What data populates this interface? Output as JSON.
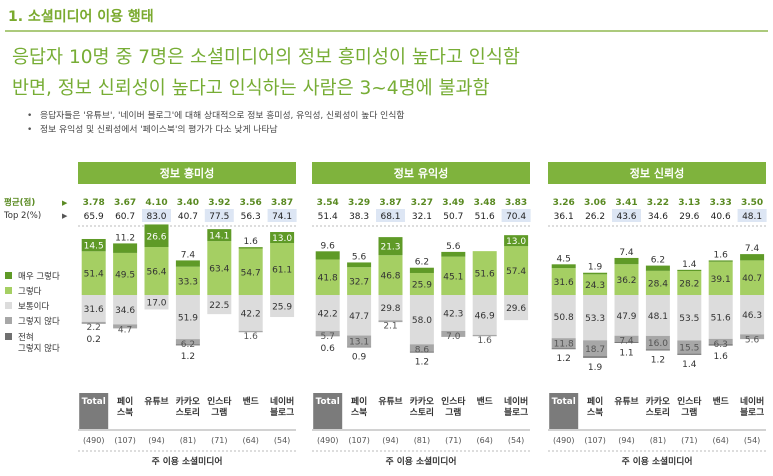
{
  "header": {
    "section_title": "1. 소셜미디어 이용 행태",
    "headline_1": "응답자 10명 중 7명은 소셜미디어의 정보 흥미성이 높다고 인식함",
    "headline_2": "반면, 정보 신뢰성이 높다고 인식하는 사람은 3~4명에 불과함",
    "bullets": [
      "응답자들은 '유튜브', '네이버 블로그'에 대해 상대적으로 정보 흥미성, 유익성, 신뢰성이 높다 인식함",
      "정보 유익성 및 신뢰성에서 '페이스북'의 평가가 다소 낮게 나타남"
    ]
  },
  "row_labels": {
    "mean": "평균(점)",
    "top2": "Top 2(%)"
  },
  "legend": [
    {
      "label": "매우 그렇다",
      "color": "#5f9a27"
    },
    {
      "label": "그렇다",
      "color": "#a5cf63"
    },
    {
      "label": "보통이다",
      "color": "#dcdcdc"
    },
    {
      "label": "그렇지 않다",
      "color": "#a7a7a7"
    },
    {
      "label": "전혀 그렇지 않다",
      "color": "#707070"
    }
  ],
  "colors": {
    "accent": "#7aaa2e",
    "headline": "#77ad35",
    "panel_header": "#7fb33d",
    "top2_highlight": "#dde6f4",
    "total_box": "#7b7b7b"
  },
  "chart_data": {
    "type": "stacked-bar",
    "x_axis_title": "주 이용 소셜미디어",
    "categories": [
      "Total",
      "페이스북",
      "유튜브",
      "카카오스토리",
      "인스타그램",
      "밴드",
      "네이버블로그"
    ],
    "category_labels": [
      "Total",
      "페이\n스북",
      "유튜브",
      "카카오\n스토리",
      "인스타\n그램",
      "밴드",
      "네이버\n블로그"
    ],
    "sample_sizes": [
      "(490)",
      "(107)",
      "(94)",
      "(81)",
      "(71)",
      "(64)",
      "(54)"
    ],
    "series_names": [
      "매우 그렇다",
      "그렇다",
      "보통이다",
      "그렇지 않다",
      "전혀 그렇지 않다"
    ],
    "panels": [
      {
        "title": "정보 흥미성",
        "mean": [
          "3.78",
          "3.67",
          "4.10",
          "3.40",
          "3.92",
          "3.56",
          "3.87"
        ],
        "top2": [
          "65.9",
          "60.7",
          "83.0",
          "40.7",
          "77.5",
          "56.3",
          "74.1"
        ],
        "top2_highlight": [
          false,
          false,
          true,
          false,
          true,
          false,
          true
        ],
        "values": [
          [
            14.5,
            51.4,
            31.6,
            2.2,
            0.2
          ],
          [
            11.2,
            49.5,
            34.6,
            4.7,
            0
          ],
          [
            26.6,
            56.4,
            17.0,
            0,
            0
          ],
          [
            7.4,
            33.3,
            51.9,
            6.2,
            1.2
          ],
          [
            14.1,
            63.4,
            22.5,
            0,
            0
          ],
          [
            1.6,
            54.7,
            42.2,
            1.6,
            0
          ],
          [
            13.0,
            61.1,
            25.9,
            0,
            0
          ]
        ]
      },
      {
        "title": "정보 유익성",
        "mean": [
          "3.54",
          "3.29",
          "3.87",
          "3.27",
          "3.49",
          "3.48",
          "3.83"
        ],
        "top2": [
          "51.4",
          "38.3",
          "68.1",
          "32.1",
          "50.7",
          "51.6",
          "70.4"
        ],
        "top2_highlight": [
          false,
          false,
          true,
          false,
          false,
          false,
          true
        ],
        "values": [
          [
            9.6,
            41.8,
            42.2,
            5.7,
            0.6
          ],
          [
            5.6,
            32.7,
            47.7,
            13.1,
            0.9
          ],
          [
            21.3,
            46.8,
            29.8,
            2.1,
            0
          ],
          [
            6.2,
            25.9,
            58.0,
            8.6,
            1.2
          ],
          [
            5.6,
            45.1,
            42.3,
            7.0,
            0
          ],
          [
            0,
            51.6,
            46.9,
            1.6,
            0
          ],
          [
            13.0,
            57.4,
            29.6,
            0,
            0
          ]
        ]
      },
      {
        "title": "정보 신뢰성",
        "mean": [
          "3.26",
          "3.06",
          "3.41",
          "3.22",
          "3.13",
          "3.33",
          "3.50"
        ],
        "top2": [
          "36.1",
          "26.2",
          "43.6",
          "34.6",
          "29.6",
          "40.6",
          "48.1"
        ],
        "top2_highlight": [
          false,
          false,
          true,
          false,
          false,
          false,
          true
        ],
        "values": [
          [
            4.5,
            31.6,
            50.8,
            11.8,
            1.2
          ],
          [
            1.9,
            24.3,
            53.3,
            18.7,
            1.9
          ],
          [
            7.4,
            36.2,
            47.9,
            7.4,
            1.1
          ],
          [
            6.2,
            28.4,
            48.1,
            16.0,
            1.2
          ],
          [
            1.4,
            28.2,
            53.5,
            15.5,
            1.4
          ],
          [
            1.6,
            39.1,
            51.6,
            6.3,
            1.6
          ],
          [
            7.4,
            40.7,
            46.3,
            5.6,
            0
          ]
        ]
      }
    ]
  }
}
